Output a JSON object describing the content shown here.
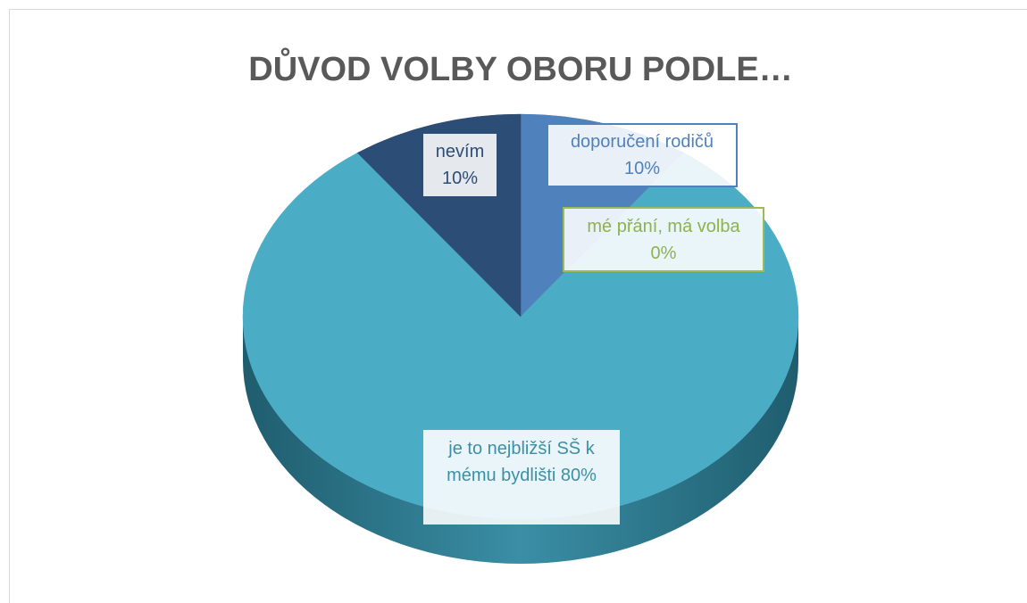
{
  "chart_data": {
    "type": "pie",
    "title": "DŮVOD VOLBY OBORU PODLE…",
    "categories": [
      "doporučení rodičů",
      "mé přání, má volba",
      "je to nejbližší SŠ k mému bydlišti",
      "nevím"
    ],
    "values": [
      10,
      0,
      80,
      10
    ],
    "value_labels": [
      "10%",
      "0%",
      "80%",
      "10%"
    ],
    "colors": [
      "#4f81bd",
      "#9bbb59",
      "#4bacc6",
      "#2c4d75"
    ]
  }
}
